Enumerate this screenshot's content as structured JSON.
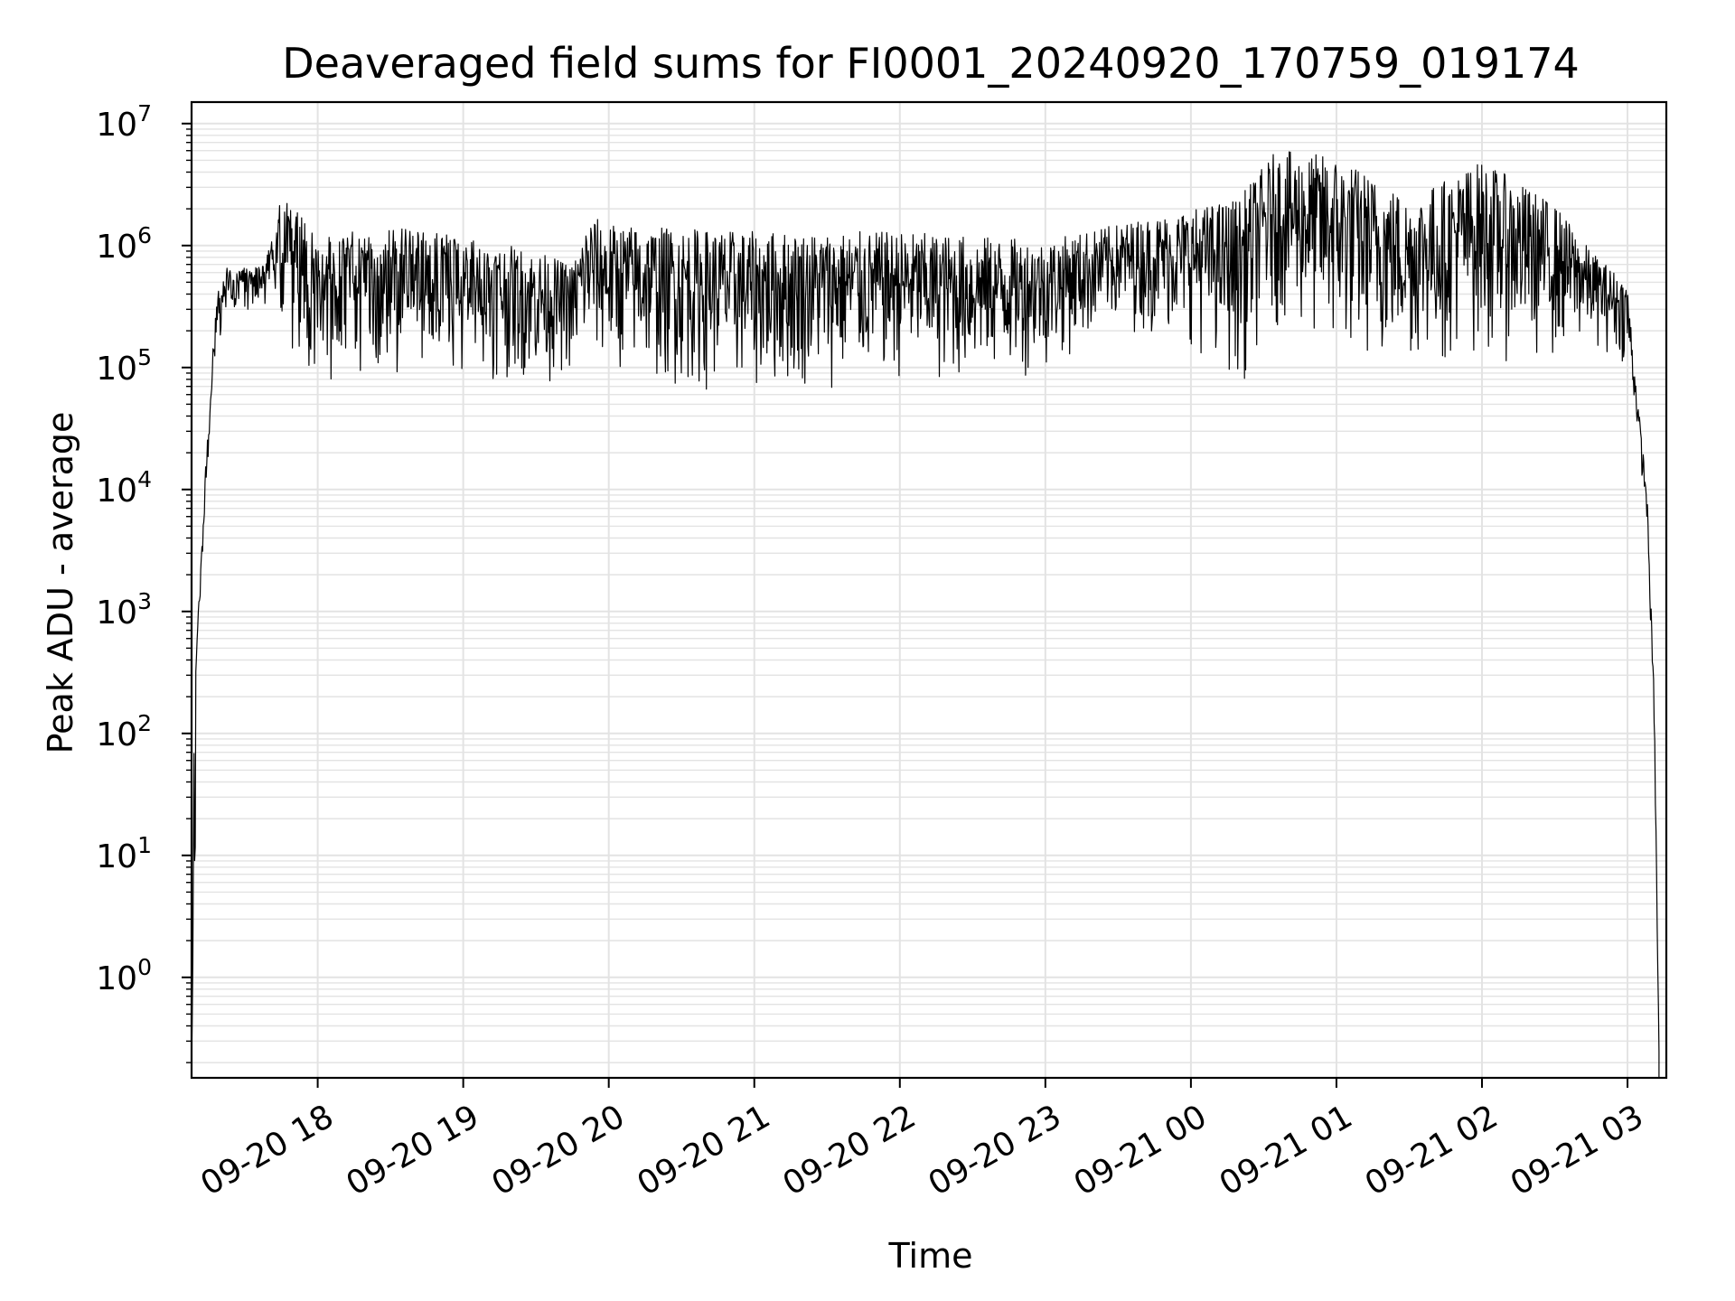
{
  "chart_data": {
    "type": "line",
    "title": "Deaveraged field sums for FI0001_20240920_170759_019174",
    "xlabel": "Time",
    "ylabel": "Peak ADU - average",
    "y_scale": "log",
    "ylim": [
      0.15,
      15000000
    ],
    "xlim": [
      "2024-09-20 17:08",
      "2024-09-21 03:16"
    ],
    "grid": true,
    "grid_minor": true,
    "line_color": "#000000",
    "grid_color": "#e3e3e3",
    "x_ticks": [
      {
        "time": "2024-09-20 18:00",
        "label": "09-20 18"
      },
      {
        "time": "2024-09-20 19:00",
        "label": "09-20 19"
      },
      {
        "time": "2024-09-20 20:00",
        "label": "09-20 20"
      },
      {
        "time": "2024-09-20 21:00",
        "label": "09-20 21"
      },
      {
        "time": "2024-09-20 22:00",
        "label": "09-20 22"
      },
      {
        "time": "2024-09-20 23:00",
        "label": "09-20 23"
      },
      {
        "time": "2024-09-21 00:00",
        "label": "09-21 00"
      },
      {
        "time": "2024-09-21 01:00",
        "label": "09-21 01"
      },
      {
        "time": "2024-09-21 02:00",
        "label": "09-21 02"
      },
      {
        "time": "2024-09-21 03:00",
        "label": "09-21 03"
      }
    ],
    "y_ticks": [
      {
        "value": 1,
        "base": "10",
        "exp": "0"
      },
      {
        "value": 10,
        "base": "10",
        "exp": "1"
      },
      {
        "value": 100,
        "base": "10",
        "exp": "2"
      },
      {
        "value": 1000,
        "base": "10",
        "exp": "3"
      },
      {
        "value": 10000,
        "base": "10",
        "exp": "4"
      },
      {
        "value": 100000,
        "base": "10",
        "exp": "5"
      },
      {
        "value": 1000000,
        "base": "10",
        "exp": "6"
      },
      {
        "value": 10000000,
        "base": "10",
        "exp": "7"
      }
    ],
    "series": [
      {
        "envelope": [
          {
            "t": "2024-09-20 17:08",
            "hi": 0.2,
            "lo": 0.15
          },
          {
            "t": "2024-09-20 17:09",
            "hi": 80,
            "lo": 0.15
          },
          {
            "t": "2024-09-20 17:10",
            "hi": 500,
            "lo": 300
          },
          {
            "t": "2024-09-20 17:12",
            "hi": 3000,
            "lo": 2000
          },
          {
            "t": "2024-09-20 17:14",
            "hi": 20000,
            "lo": 8000
          },
          {
            "t": "2024-09-20 17:16",
            "hi": 100000,
            "lo": 40000
          },
          {
            "t": "2024-09-20 17:19",
            "hi": 500000,
            "lo": 150000
          },
          {
            "t": "2024-09-20 17:23",
            "hi": 700000,
            "lo": 250000
          },
          {
            "t": "2024-09-20 17:30",
            "hi": 650000,
            "lo": 300000
          },
          {
            "t": "2024-09-20 17:38",
            "hi": 700000,
            "lo": 250000
          },
          {
            "t": "2024-09-20 17:45",
            "hi": 2500000,
            "lo": 150000
          },
          {
            "t": "2024-09-20 18:00",
            "hi": 1300000,
            "lo": 60000
          },
          {
            "t": "2024-09-20 18:30",
            "hi": 1400000,
            "lo": 70000
          },
          {
            "t": "2024-09-20 19:00",
            "hi": 1200000,
            "lo": 80000
          },
          {
            "t": "2024-09-20 19:30",
            "hi": 900000,
            "lo": 70000
          },
          {
            "t": "2024-09-20 19:45",
            "hi": 700000,
            "lo": 80000
          },
          {
            "t": "2024-09-20 19:52",
            "hi": 1800000,
            "lo": 100000
          },
          {
            "t": "2024-09-20 20:00",
            "hi": 1500000,
            "lo": 80000
          },
          {
            "t": "2024-09-20 20:30",
            "hi": 1400000,
            "lo": 60000
          },
          {
            "t": "2024-09-20 21:00",
            "hi": 1300000,
            "lo": 55000
          },
          {
            "t": "2024-09-20 21:30",
            "hi": 1300000,
            "lo": 60000
          },
          {
            "t": "2024-09-20 22:00",
            "hi": 1300000,
            "lo": 70000
          },
          {
            "t": "2024-09-20 22:30",
            "hi": 1200000,
            "lo": 65000
          },
          {
            "t": "2024-09-20 23:00",
            "hi": 1100000,
            "lo": 90000
          },
          {
            "t": "2024-09-20 23:30",
            "hi": 1500000,
            "lo": 200000
          },
          {
            "t": "2024-09-21 00:00",
            "hi": 2000000,
            "lo": 150000
          },
          {
            "t": "2024-09-21 00:20",
            "hi": 2500000,
            "lo": 65000
          },
          {
            "t": "2024-09-21 00:35",
            "hi": 6000000,
            "lo": 200000
          },
          {
            "t": "2024-09-21 01:00",
            "hi": 5500000,
            "lo": 90000
          },
          {
            "t": "2024-09-21 01:30",
            "hi": 2500000,
            "lo": 90000
          },
          {
            "t": "2024-09-21 02:00",
            "hi": 5000000,
            "lo": 110000
          },
          {
            "t": "2024-09-21 02:30",
            "hi": 2200000,
            "lo": 100000
          },
          {
            "t": "2024-09-21 02:45",
            "hi": 900000,
            "lo": 150000
          },
          {
            "t": "2024-09-21 03:00",
            "hi": 500000,
            "lo": 100000
          },
          {
            "t": "2024-09-21 03:04",
            "hi": 60000,
            "lo": 30000
          },
          {
            "t": "2024-09-21 03:08",
            "hi": 10000,
            "lo": 5000
          },
          {
            "t": "2024-09-21 03:11",
            "hi": 200,
            "lo": 100
          },
          {
            "t": "2024-09-21 03:13",
            "hi": 0.3,
            "lo": 0.15
          }
        ]
      }
    ]
  }
}
